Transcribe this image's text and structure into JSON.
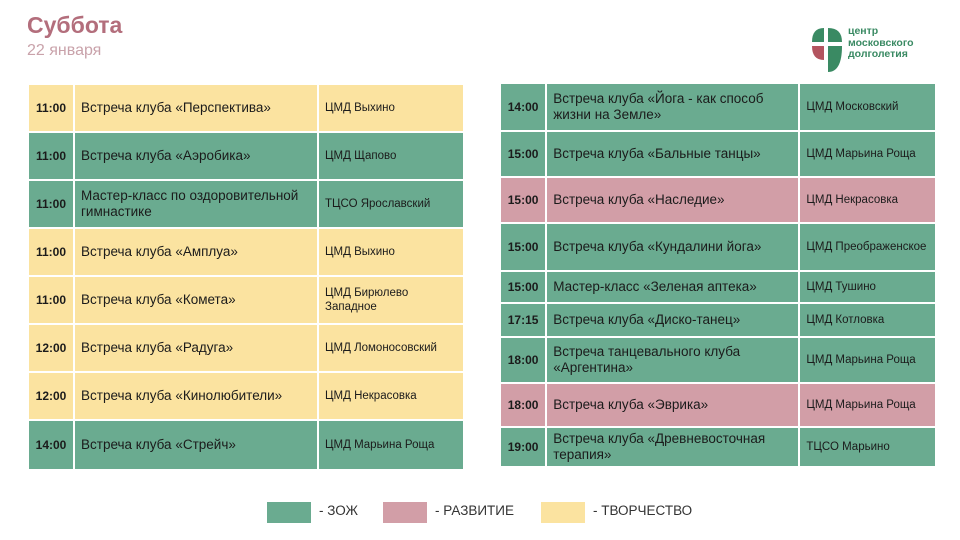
{
  "header": {
    "title": "Суббота",
    "date": "22 января"
  },
  "logo": {
    "lines": [
      "центр",
      "московского",
      "долголетия"
    ],
    "colors": [
      "#3a8a63",
      "#b3545f"
    ]
  },
  "colors": {
    "zoz": "#6aab90",
    "razvitie": "#d29ea7",
    "tvorchestvo": "#fbe3a0"
  },
  "left_schedule": [
    {
      "time": "11:00",
      "event": "Встреча клуба «Перспектива»",
      "place": "ЦМД Выхино",
      "category": "tvor"
    },
    {
      "time": "11:00",
      "event": "Встреча клуба «Аэробика»",
      "place": "ЦМД Щапово",
      "category": "zoz"
    },
    {
      "time": "11:00",
      "event": "Мастер-класс по оздоровительной гимнастике",
      "place": "ТЦСО Ярославский",
      "category": "zoz"
    },
    {
      "time": "11:00",
      "event": "Встреча клуба «Амплуа»",
      "place": "ЦМД Выхино",
      "category": "tvor"
    },
    {
      "time": "11:00",
      "event": "Встреча клуба «Комета»",
      "place": "ЦМД Бирюлево Западное",
      "category": "tvor"
    },
    {
      "time": "12:00",
      "event": "Встреча клуба «Радуга»",
      "place": "ЦМД Ломоносовский",
      "category": "tvor"
    },
    {
      "time": "12:00",
      "event": "Встреча клуба «Кинолюбители»",
      "place": "ЦМД Некрасовка",
      "category": "tvor"
    },
    {
      "time": "14:00",
      "event": "Встреча клуба «Стрейч»",
      "place": "ЦМД Марьина Роща",
      "category": "zoz"
    }
  ],
  "right_schedule": [
    {
      "time": "14:00",
      "event": "Встреча клуба «Йога - как способ жизни на Земле»",
      "place": "ЦМД Московский",
      "category": "zoz"
    },
    {
      "time": "15:00",
      "event": "Встреча клуба «Бальные танцы»",
      "place": "ЦМД Марьина Роща",
      "category": "zoz"
    },
    {
      "time": "15:00",
      "event": "Встреча клуба «Наследие»",
      "place": "ЦМД Некрасовка",
      "category": "razv"
    },
    {
      "time": "15:00",
      "event": "Встреча клуба «Кундалини йога»",
      "place": "ЦМД Преображенское",
      "category": "zoz"
    },
    {
      "time": "15:00",
      "event": "Мастер-класс «Зеленая аптека»",
      "place": "ЦМД Тушино",
      "category": "zoz"
    },
    {
      "time": "17:15",
      "event": "Встреча клуба «Диско-танец»",
      "place": "ЦМД Котловка",
      "category": "zoz"
    },
    {
      "time": "18:00",
      "event": "Встреча танцевального клуба «Аргентина»",
      "place": "ЦМД Марьина Роща",
      "category": "zoz"
    },
    {
      "time": "18:00",
      "event": "Встреча клуба «Эврика»",
      "place": "ЦМД Марьина Роща",
      "category": "razv"
    },
    {
      "time": "19:00",
      "event": "Встреча клуба «Древневосточная терапия»",
      "place": "ТЦСО Марьино",
      "category": "zoz"
    }
  ],
  "legend": [
    {
      "label": "- ЗОЖ",
      "category": "zoz"
    },
    {
      "label": "- РАЗВИТИЕ",
      "category": "razv"
    },
    {
      "label": "- ТВОРЧЕСТВО",
      "category": "tvor"
    }
  ]
}
